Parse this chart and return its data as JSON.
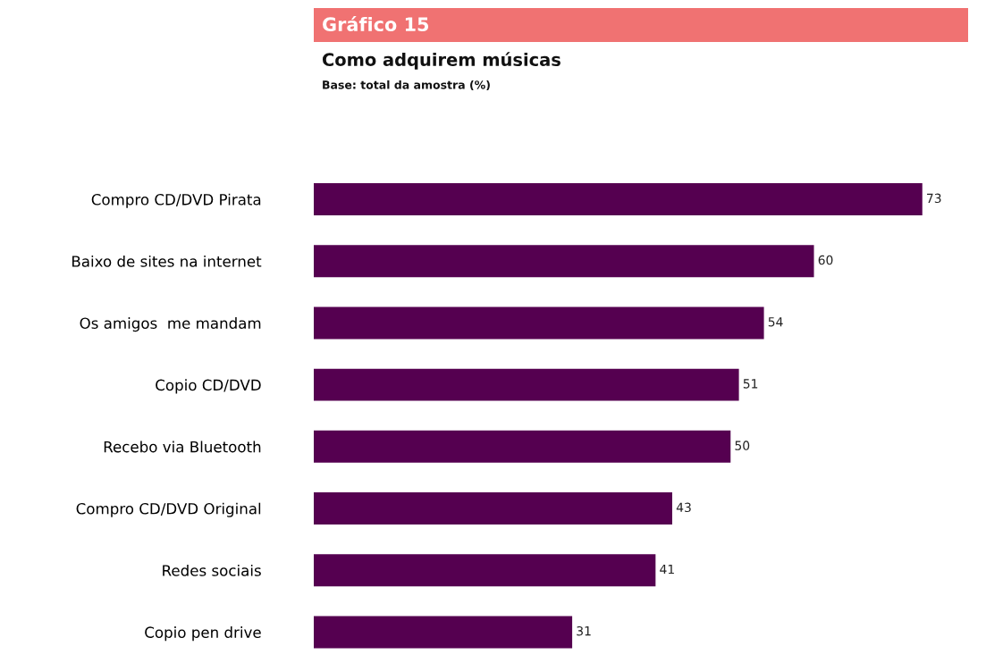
{
  "chart_data": {
    "type": "bar",
    "orientation": "horizontal",
    "title": "Gráfico 15",
    "subtitle": "Como adquirem músicas",
    "annotations": [
      "Base: total da amostra (%)"
    ],
    "categories": [
      "Compro CD/DVD Pirata",
      "Baixo de sites na internet",
      "Os amigos  me mandam",
      "Copio CD/DVD",
      "Recebo via Bluetooth",
      "Compro CD/DVD Original",
      "Redes sociais",
      "Copio pen drive"
    ],
    "values": [
      73,
      60,
      54,
      51,
      50,
      43,
      41,
      31
    ],
    "color": "#550050",
    "data_labels": true,
    "grid": false,
    "legend": false
  }
}
